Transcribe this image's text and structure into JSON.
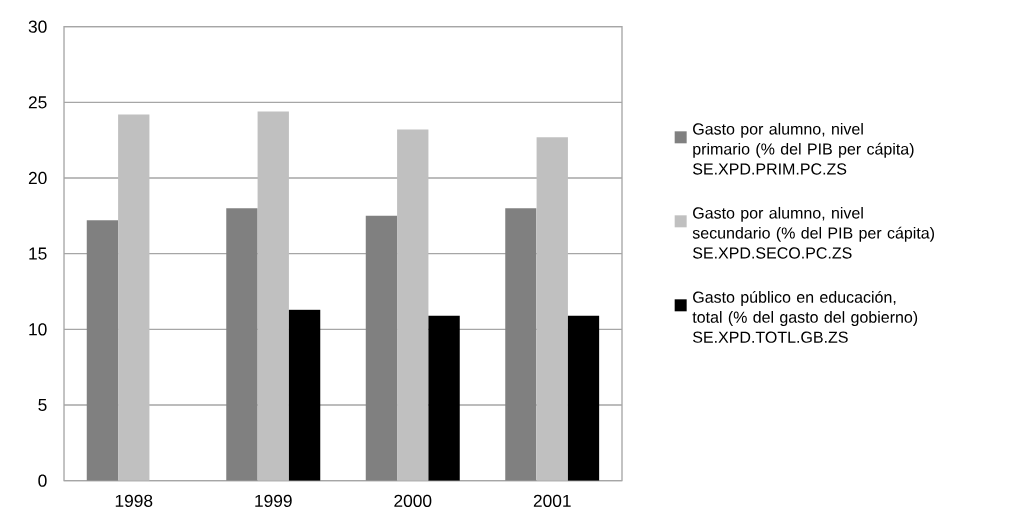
{
  "chart_data": {
    "type": "bar",
    "categories": [
      "1998",
      "1999",
      "2000",
      "2001"
    ],
    "series": [
      {
        "name": "Gasto por alumno, nivel primario (% del PIB per cápita) SE.XPD.PRIM.PC.ZS",
        "color": "#808080",
        "values": [
          17.2,
          18.0,
          17.5,
          18.0
        ]
      },
      {
        "name": "Gasto por alumno, nivel secundario (% del PIB per cápita) SE.XPD.SECO.PC.ZS",
        "color": "#c0c0c0",
        "values": [
          24.2,
          24.4,
          23.2,
          22.7
        ]
      },
      {
        "name": "Gasto público en educación, total (% del gasto del gobierno) SE.XPD.TOTL.GB.ZS",
        "color": "#000000",
        "values": [
          null,
          11.3,
          10.9,
          10.9
        ]
      }
    ],
    "ylim": [
      0,
      30
    ],
    "yticks": [
      0,
      5,
      10,
      15,
      20,
      25,
      30
    ],
    "grid": "y",
    "legend": "right"
  }
}
